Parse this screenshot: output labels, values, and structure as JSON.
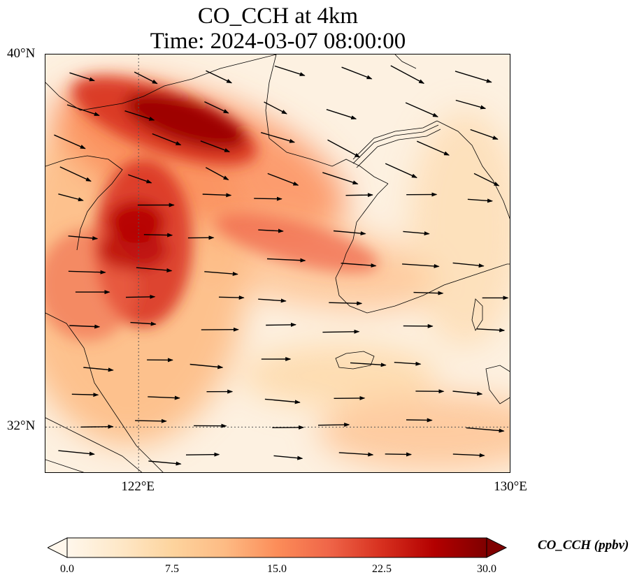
{
  "title": {
    "line1": "CO_CCH at 4km",
    "line2": "Time: 2024-03-07 08:00:00"
  },
  "map": {
    "lat_range": [
      31.0,
      40.0
    ],
    "lon_range": [
      120.0,
      130.0
    ],
    "lat_ticks": [
      {
        "value": 40,
        "label": "40°N"
      },
      {
        "value": 32,
        "label": "32°N"
      }
    ],
    "lon_ticks": [
      {
        "value": 122,
        "label": "122°E"
      },
      {
        "value": 130,
        "label": "130°E"
      }
    ],
    "gridlines": "dotted",
    "field": "CO_CCH",
    "wind_vectors": true
  },
  "colorbar": {
    "label": "CO_CCH (ppbv)",
    "min": 0.0,
    "max": 30.0,
    "extend": "both",
    "colormap": "OrRd",
    "colors": [
      "#fff7ec",
      "#fee8c8",
      "#fdd49e",
      "#fdbb84",
      "#fc8d59",
      "#ef6548",
      "#d7301f",
      "#b30000",
      "#7f0000"
    ],
    "ticks": [
      "0.0",
      "7.5",
      "15.0",
      "22.5",
      "30.0"
    ]
  }
}
